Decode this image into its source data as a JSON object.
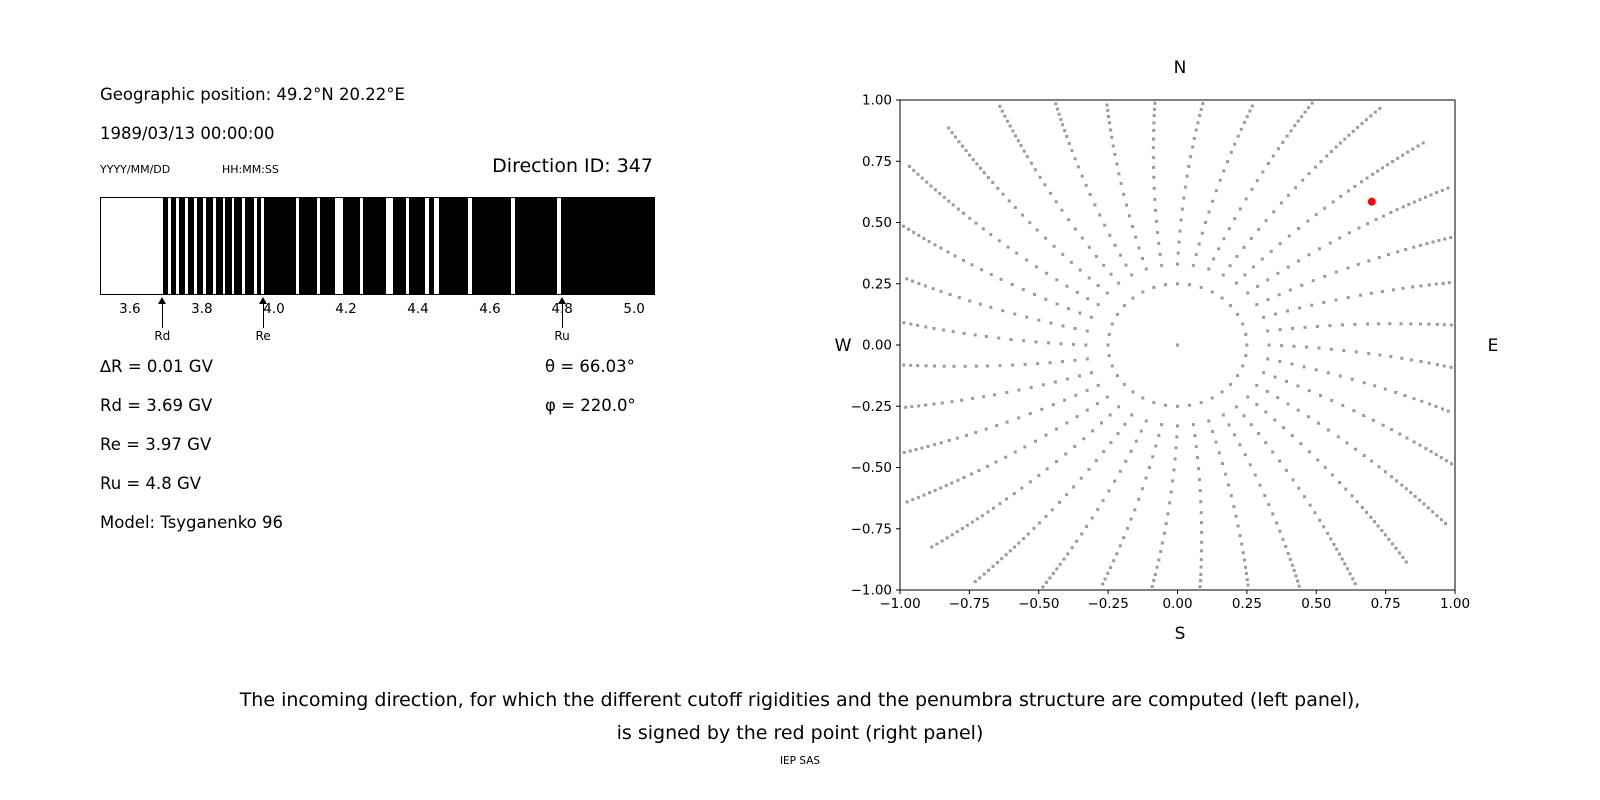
{
  "colors": {
    "text": "#000000",
    "bar": "#000000",
    "frame": "#000000",
    "dot": "#9b9b9b",
    "red": "#ff0000",
    "background": "#ffffff"
  },
  "left_panel": {
    "geo_position": "Geographic position: 49.2°N 20.22°E",
    "datetime": "1989/03/13 00:00:00",
    "date_format_label": "YYYY/MM/DD",
    "time_format_label": "HH:MM:SS",
    "direction_id": "Direction ID: 347",
    "params_left": [
      "∆R = 0.01 GV",
      "Rd = 3.69 GV",
      "Re = 3.97 GV",
      "Ru = 4.8 GV",
      "Model: Tsyganenko 96"
    ],
    "params_right": [
      "θ = 66.03°",
      "φ = 220.0°"
    ]
  },
  "caption": {
    "line1": "The incoming direction, for which the different cutoff rigidities and the penumbra structure are computed (left panel),",
    "line2": "is signed by the red point (right panel)",
    "credit": "IEP SAS"
  },
  "chart_data": [
    {
      "name": "penumbra-structure",
      "type": "bar",
      "title": "",
      "xlim": [
        3.517,
        5.058
      ],
      "xticks": [
        3.6,
        3.8,
        4.0,
        4.2,
        4.4,
        4.6,
        4.8,
        5.0
      ],
      "delta_r_gv": 0.01,
      "rd_gv": 3.69,
      "re_gv": 3.97,
      "ru_gv": 4.8,
      "black_segments_gv": [
        [
          3.69,
          3.705
        ],
        [
          3.712,
          3.727
        ],
        [
          3.734,
          3.752
        ],
        [
          3.76,
          3.776
        ],
        [
          3.784,
          3.801
        ],
        [
          3.809,
          3.829
        ],
        [
          3.837,
          3.857
        ],
        [
          3.863,
          3.881
        ],
        [
          3.889,
          3.911
        ],
        [
          3.917,
          3.943
        ],
        [
          3.951,
          3.963
        ],
        [
          3.97,
          4.06
        ],
        [
          4.068,
          4.12
        ],
        [
          4.128,
          4.168
        ],
        [
          4.19,
          4.238
        ],
        [
          4.248,
          4.31
        ],
        [
          4.33,
          4.368
        ],
        [
          4.376,
          4.42
        ],
        [
          4.432,
          4.446
        ],
        [
          4.458,
          4.54
        ],
        [
          4.552,
          4.66
        ],
        [
          4.672,
          4.788
        ],
        [
          4.8,
          5.058
        ]
      ],
      "markers": [
        {
          "label": "Rd",
          "x_gv": 3.69
        },
        {
          "label": "Re",
          "x_gv": 3.97
        },
        {
          "label": "Ru",
          "x_gv": 4.8
        }
      ]
    },
    {
      "name": "incoming-directions",
      "type": "scatter",
      "xlim": [
        -1.0,
        1.0
      ],
      "ylim": [
        -1.0,
        1.0
      ],
      "xtick_labels": [
        "−1.00",
        "−0.75",
        "−0.50",
        "−0.25",
        "0.00",
        "0.25",
        "0.50",
        "0.75",
        "1.00"
      ],
      "ytick_labels": [
        "1.00",
        "0.75",
        "0.50",
        "0.25",
        "0.00",
        "−0.25",
        "−0.50",
        "−0.75",
        "−1.00"
      ],
      "compass": {
        "top": "N",
        "bottom": "S",
        "left": "W",
        "right": "E"
      },
      "red_point": {
        "x": 0.7,
        "y": 0.585
      },
      "center_dot": true,
      "pattern": {
        "spokes": 36,
        "inner_ring_radius": 0.25,
        "spoke_radii": [
          0.33,
          0.375,
          0.42,
          0.465,
          0.51,
          0.555,
          0.6,
          0.645,
          0.69,
          0.73,
          0.77,
          0.81,
          0.845,
          0.88,
          0.91,
          0.94,
          0.965,
          0.99,
          1.012,
          1.034,
          1.056,
          1.078,
          1.1,
          1.122,
          1.144,
          1.166,
          1.188,
          1.21
        ],
        "twist_deg_per_unit_radius": -8,
        "clip_limit": 0.99
      }
    }
  ]
}
